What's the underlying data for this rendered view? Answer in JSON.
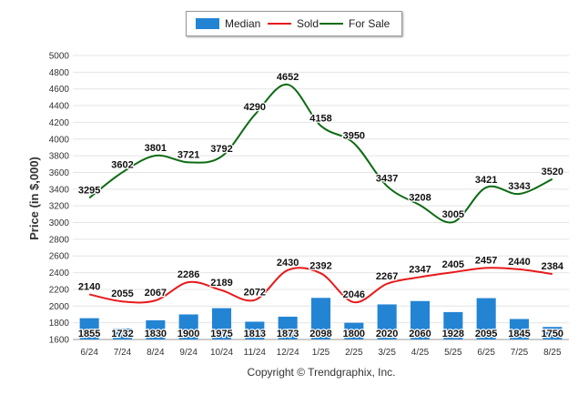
{
  "chart_data": {
    "type": "bar+line",
    "categories": [
      "6/24",
      "7/24",
      "8/24",
      "9/24",
      "10/24",
      "11/24",
      "12/24",
      "1/25",
      "2/25",
      "3/25",
      "4/25",
      "5/25",
      "6/25",
      "7/25",
      "8/25"
    ],
    "series": [
      {
        "name": "Median",
        "kind": "bar",
        "color": "#2384D4",
        "values": [
          1855,
          1732,
          1830,
          1900,
          1975,
          1813,
          1873,
          2098,
          1800,
          2020,
          2060,
          1928,
          2095,
          1845,
          1750
        ]
      },
      {
        "name": "Sold",
        "kind": "line",
        "color": "#E8191A",
        "values": [
          2140,
          2055,
          2067,
          2286,
          2189,
          2072,
          2430,
          2392,
          2046,
          2267,
          2347,
          2405,
          2457,
          2440,
          2384
        ]
      },
      {
        "name": "For Sale",
        "kind": "line",
        "color": "#0B6B12",
        "values": [
          3295,
          3602,
          3801,
          3721,
          3792,
          4290,
          4652,
          4158,
          3950,
          3437,
          3208,
          3005,
          3421,
          3343,
          3520
        ]
      }
    ],
    "ylabel": "Price (in $,000)",
    "xlabel": "",
    "ylim": [
      1600,
      5000
    ],
    "yticks": [
      1600,
      1800,
      2000,
      2200,
      2400,
      2600,
      2800,
      3000,
      3200,
      3400,
      3600,
      3800,
      4000,
      4200,
      4400,
      4600,
      4800,
      5000
    ],
    "grid": true,
    "legend_position": "top"
  },
  "legend": {
    "median": "Median",
    "sold": "Sold",
    "for_sale": "For Sale"
  },
  "copyright": "Copyright © Trendgraphix, Inc."
}
